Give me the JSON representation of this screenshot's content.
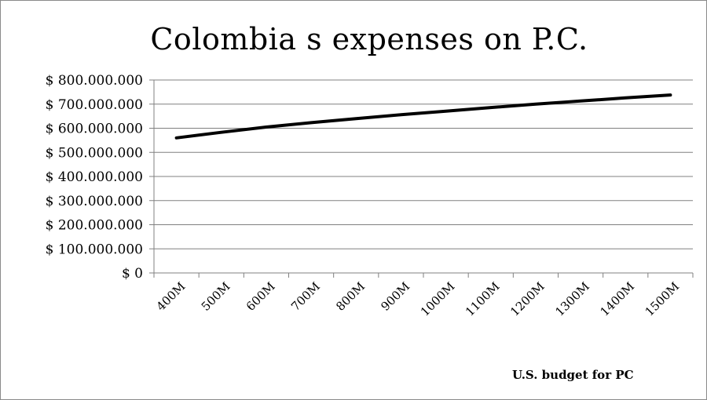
{
  "chart_data": {
    "type": "line",
    "title": "Colombia s expenses on P.C.",
    "xlabel": "U.S. budget for PC",
    "ylabel": "",
    "categories": [
      "400M",
      "500M",
      "600M",
      "700M",
      "800M",
      "900M",
      "1000M",
      "1100M",
      "1200M",
      "1300M",
      "1400M",
      "1500M"
    ],
    "series": [
      {
        "values": [
          560000000,
          583000000,
          605000000,
          623000000,
          640000000,
          656000000,
          671000000,
          686000000,
          700000000,
          713000000,
          726000000,
          738000000
        ]
      }
    ],
    "ylim": [
      0,
      800000000
    ],
    "yticks": [
      0,
      100000000,
      200000000,
      300000000,
      400000000,
      500000000,
      600000000,
      700000000,
      800000000
    ],
    "ytick_labels": [
      "$ 0",
      "$ 100.000.000",
      "$ 200.000.000",
      "$ 300.000.000",
      "$ 400.000.000",
      "$ 500.000.000",
      "$ 600.000.000",
      "$ 700.000.000",
      "$ 800.000.000"
    ],
    "grid": true,
    "legend": "none",
    "line_color": "#000000",
    "grid_color": "#808080"
  }
}
